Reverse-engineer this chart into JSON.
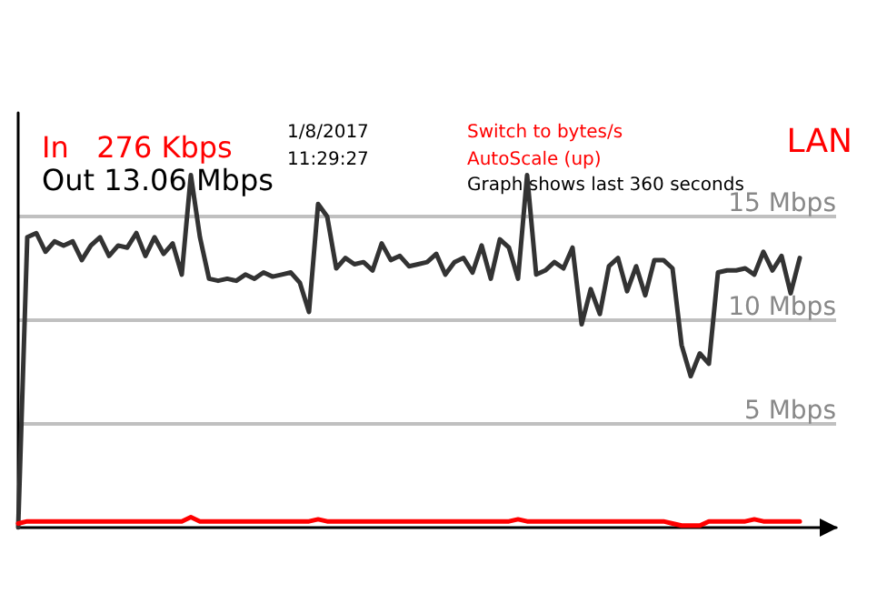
{
  "chart_data": {
    "type": "line",
    "title": "LAN",
    "annotations": [
      "1/8/2017",
      "11:29:27",
      "Switch to bytes/s",
      "AutoScale (up)",
      "Graph shows last 360 seconds"
    ],
    "categories": [
      null,
      null,
      null,
      null,
      null,
      null,
      null,
      null,
      null,
      null,
      null,
      null,
      null,
      null,
      null,
      null,
      null,
      null,
      null,
      null,
      null,
      null,
      null,
      null,
      null,
      null,
      null,
      null,
      null,
      null,
      null,
      null,
      null,
      null,
      null,
      null,
      null,
      null,
      null,
      null,
      null,
      null,
      null,
      null,
      null,
      null,
      null,
      null,
      null,
      null,
      null,
      null,
      null,
      null,
      null,
      null,
      null,
      null,
      null,
      null,
      null,
      null,
      null,
      null,
      null,
      null,
      null,
      null,
      null,
      null,
      null,
      null,
      null,
      null,
      null,
      null,
      null,
      null,
      null,
      null,
      null,
      null,
      null,
      null,
      null,
      null,
      null,
      null,
      null,
      null,
      null
    ],
    "series": [
      {
        "name": "In   276 Kbps",
        "color": "#ff0000",
        "values": [
          0.2,
          0.3,
          0.3,
          0.3,
          0.3,
          0.3,
          0.3,
          0.3,
          0.3,
          0.3,
          0.3,
          0.3,
          0.3,
          0.3,
          0.3,
          0.3,
          0.3,
          0.3,
          0.3,
          0.5,
          0.3,
          0.3,
          0.3,
          0.3,
          0.3,
          0.3,
          0.3,
          0.3,
          0.3,
          0.3,
          0.3,
          0.3,
          0.3,
          0.4,
          0.3,
          0.3,
          0.3,
          0.3,
          0.3,
          0.3,
          0.3,
          0.3,
          0.3,
          0.3,
          0.3,
          0.3,
          0.3,
          0.3,
          0.3,
          0.3,
          0.3,
          0.3,
          0.3,
          0.3,
          0.3,
          0.4,
          0.3,
          0.3,
          0.3,
          0.3,
          0.3,
          0.3,
          0.3,
          0.3,
          0.3,
          0.3,
          0.3,
          0.3,
          0.3,
          0.3,
          0.3,
          0.3,
          0.2,
          0.1,
          0.1,
          0.1,
          0.3,
          0.3,
          0.3,
          0.3,
          0.3,
          0.4,
          0.3,
          0.3,
          0.3,
          0.3,
          0.3,
          null,
          null,
          null,
          null
        ]
      },
      {
        "name": "Out 13.06 Mbps",
        "color": "#333333",
        "values": [
          0,
          14.0,
          14.2,
          13.3,
          13.8,
          13.6,
          13.8,
          12.9,
          13.6,
          14.0,
          13.1,
          13.6,
          13.5,
          14.2,
          13.1,
          14.0,
          13.2,
          13.7,
          12.2,
          17.0,
          14.0,
          12.0,
          11.9,
          12.0,
          11.9,
          12.2,
          12.0,
          12.3,
          12.1,
          12.2,
          12.3,
          11.8,
          10.4,
          15.6,
          15.0,
          12.5,
          13.0,
          12.7,
          12.8,
          12.4,
          13.7,
          12.9,
          13.1,
          12.6,
          12.7,
          12.8,
          13.2,
          12.2,
          12.8,
          13.0,
          12.3,
          13.6,
          12.0,
          13.9,
          13.5,
          12.0,
          17.0,
          12.2,
          12.4,
          12.8,
          12.5,
          13.5,
          9.8,
          11.5,
          10.3,
          12.6,
          13.0,
          11.4,
          12.6,
          11.2,
          12.9,
          12.9,
          12.5,
          8.8,
          7.3,
          8.4,
          7.9,
          12.3,
          12.4,
          12.4,
          12.5,
          12.2,
          13.3,
          12.4,
          13.1,
          11.3,
          13.0,
          null,
          null,
          null,
          null
        ]
      }
    ],
    "ylim": [
      0,
      20
    ],
    "yticks": [
      {
        "value": 5,
        "label": "5 Mbps"
      },
      {
        "value": 10,
        "label": "10 Mbps"
      },
      {
        "value": 15,
        "label": "15 Mbps"
      }
    ],
    "grid": "y",
    "legend": "top left",
    "tick_labels": "y",
    "line_style": "solid"
  }
}
